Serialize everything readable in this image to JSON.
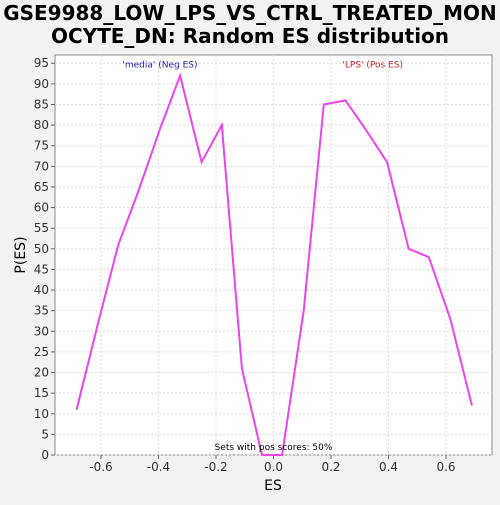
{
  "chart_data": {
    "type": "line",
    "title_lines": [
      "GSE9988_LOW_LPS_VS_CTRL_TREATED_MON",
      "OCYTE_DN: Random ES distribution"
    ],
    "xlabel": "ES",
    "ylabel": "P(ES)",
    "xlim": [
      -0.76,
      0.76
    ],
    "ylim": [
      0,
      97
    ],
    "x_ticks": [
      -0.6,
      -0.4,
      -0.2,
      0.0,
      0.2,
      0.4,
      0.6
    ],
    "x_tick_labels": [
      "-0.6",
      "-0.4",
      "-0.2",
      "0.0",
      "0.2",
      "0.4",
      "0.6"
    ],
    "y_ticks": [
      0,
      5,
      10,
      15,
      20,
      25,
      30,
      35,
      40,
      45,
      50,
      55,
      60,
      65,
      70,
      75,
      80,
      85,
      90,
      95
    ],
    "y_tick_labels": [
      "0",
      "5",
      "10",
      "15",
      "20",
      "25",
      "30",
      "35",
      "40",
      "45",
      "50",
      "55",
      "60",
      "65",
      "70",
      "75",
      "80",
      "85",
      "90",
      "95"
    ],
    "grid": true,
    "series": [
      {
        "color": "#ee44ee",
        "x": [
          -0.685,
          -0.61,
          -0.54,
          -0.47,
          -0.395,
          -0.325,
          -0.25,
          -0.18,
          -0.11,
          -0.04,
          0.03,
          0.105,
          0.175,
          0.25,
          0.32,
          0.395,
          0.47,
          0.54,
          0.615,
          0.69
        ],
        "y": [
          11,
          32,
          51,
          64,
          79,
          92,
          71,
          80,
          21,
          0,
          0,
          35,
          85,
          86,
          79,
          71,
          50,
          48,
          33,
          12
        ]
      }
    ],
    "annotations": [
      {
        "text": "'media' (Neg ES)",
        "x": -0.395,
        "y": 94,
        "color": "#2222aa"
      },
      {
        "text": "'LPS' (Pos ES)",
        "x": 0.345,
        "y": 94,
        "color": "#cc2222"
      },
      {
        "text": "Sets with pos scores: 50%",
        "x": 0.0,
        "y": 1.2,
        "color": "#000000"
      }
    ]
  }
}
